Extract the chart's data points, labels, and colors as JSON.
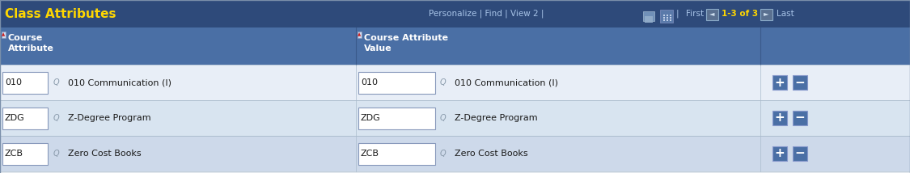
{
  "title": "Class Attributes",
  "title_color": "#FFD700",
  "header_bg": "#2E4A7A",
  "subheader_bg": "#4A6FA5",
  "row_colors": [
    "#E8EEF7",
    "#D8E4F0",
    "#CDD9EA"
  ],
  "col1_header": "Course\nAttribute",
  "col2_header": "Course Attribute\nValue",
  "nav_text": "Personalize | Find | View 2 |",
  "nav_first": "First",
  "nav_pages": "1-3 of 3",
  "nav_last": "Last",
  "rows": [
    {
      "attr": "010",
      "desc": "010 Communication (I)",
      "val": "010",
      "val_desc": "010 Communication (I)"
    },
    {
      "attr": "ZDG",
      "desc": "Z-Degree Program",
      "val": "ZDG",
      "val_desc": "Z-Degree Program"
    },
    {
      "attr": "ZCB",
      "desc": "Zero Cost Books",
      "val": "ZCB",
      "val_desc": "Zero Cost Books"
    }
  ],
  "border_color": "#AABBCC",
  "text_color_dark": "#1A1A1A",
  "link_color": "#A8C4E8",
  "page_color": "#FFD700",
  "btn_color": "#4A6FA5",
  "font_size_title": 11,
  "font_size_header": 8,
  "font_size_row": 8,
  "font_size_nav": 7.5
}
